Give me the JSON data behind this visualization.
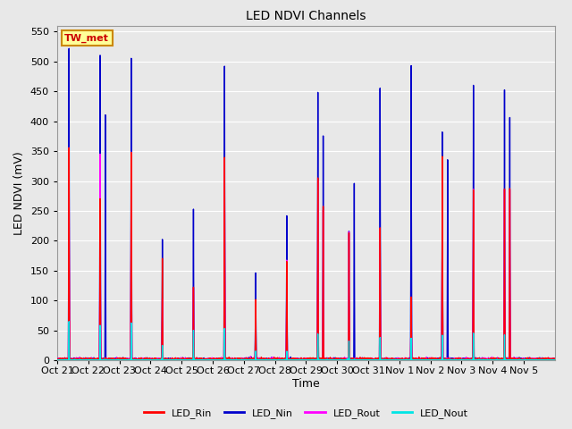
{
  "title": "LED NDVI Channels",
  "xlabel": "Time",
  "ylabel": "LED NDVI (mV)",
  "ylim": [
    0,
    560
  ],
  "yticks": [
    0,
    50,
    100,
    150,
    200,
    250,
    300,
    350,
    400,
    450,
    500,
    550
  ],
  "bg_color": "#e8e8e8",
  "grid_color": "#ffffff",
  "colors": {
    "LED_Rin": "#ff0000",
    "LED_Nin": "#0000cc",
    "LED_Rout": "#ff00ff",
    "LED_Nout": "#00e5e5"
  },
  "annotation_text": "TW_met",
  "annotation_color": "#cc0000",
  "annotation_bg": "#ffff99",
  "annotation_border": "#cc8800",
  "x_tick_labels": [
    "Oct 21",
    "Oct 22",
    "Oct 23",
    "Oct 24",
    "Oct 25",
    "Oct 26",
    "Oct 27",
    "Oct 28",
    "Oct 29",
    "Oct 30",
    "Oct 31",
    "Nov 1",
    "Nov 2",
    "Nov 3",
    "Nov 4",
    "Nov 5"
  ],
  "num_days": 16,
  "peaks_Nin": [
    520,
    510,
    505,
    200,
    253,
    492,
    145,
    238,
    447,
    215,
    455,
    492,
    380,
    459,
    452,
    0
  ],
  "peaks_Rin": [
    355,
    270,
    348,
    170,
    120,
    338,
    100,
    165,
    305,
    213,
    220,
    104,
    340,
    285,
    285,
    0
  ],
  "peaks_Rout": [
    355,
    345,
    348,
    100,
    120,
    338,
    40,
    165,
    300,
    213,
    220,
    104,
    300,
    285,
    285,
    0
  ],
  "peaks_Nout": [
    65,
    58,
    62,
    25,
    50,
    53,
    15,
    15,
    44,
    32,
    38,
    37,
    42,
    44,
    42,
    0
  ],
  "peak2_Nin": [
    0,
    408,
    0,
    0,
    0,
    0,
    0,
    0,
    375,
    295,
    0,
    0,
    335,
    0,
    405,
    0
  ],
  "peak2_Rin": [
    0,
    0,
    0,
    0,
    0,
    0,
    0,
    0,
    255,
    0,
    0,
    0,
    0,
    0,
    285,
    0
  ],
  "peak2_Rout": [
    0,
    0,
    0,
    0,
    0,
    0,
    0,
    0,
    250,
    0,
    0,
    0,
    0,
    0,
    285,
    0
  ],
  "peak2_Nout": [
    0,
    0,
    0,
    0,
    0,
    0,
    0,
    0,
    0,
    0,
    0,
    0,
    0,
    0,
    0,
    0
  ],
  "linewidth": 1.0
}
